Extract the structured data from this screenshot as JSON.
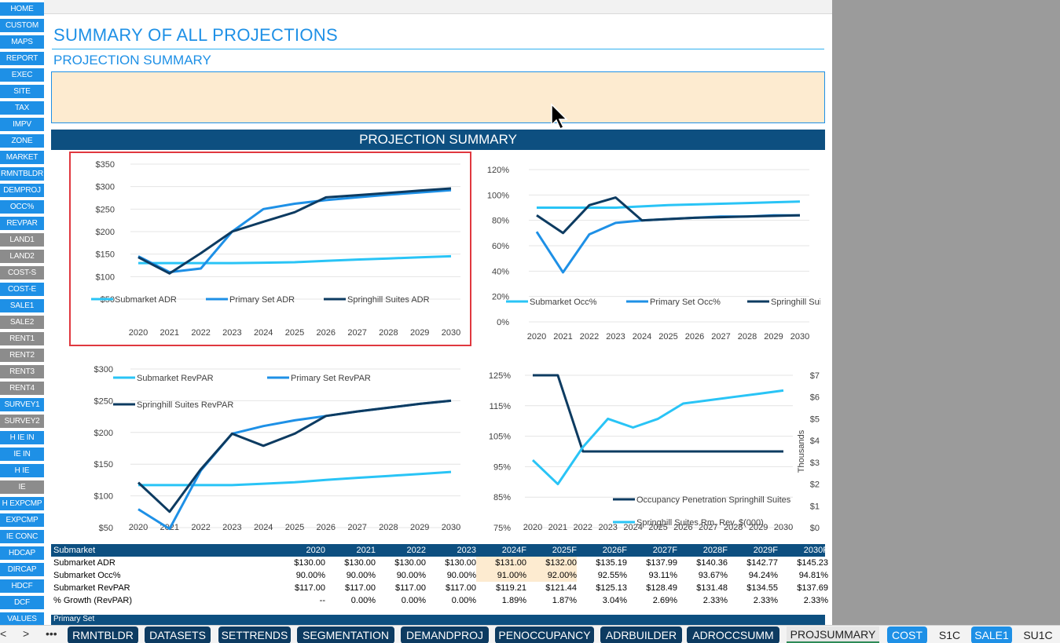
{
  "nav": [
    {
      "label": "HOME",
      "style": "blue"
    },
    {
      "label": "CUSTOM",
      "style": "blue"
    },
    {
      "label": "MAPS",
      "style": "blue"
    },
    {
      "label": "REPORT",
      "style": "blue"
    },
    {
      "label": "EXEC",
      "style": "blue"
    },
    {
      "label": "SITE",
      "style": "blue"
    },
    {
      "label": "TAX",
      "style": "blue"
    },
    {
      "label": "IMPV",
      "style": "blue"
    },
    {
      "label": "ZONE",
      "style": "blue"
    },
    {
      "label": "MARKET",
      "style": "blue"
    },
    {
      "label": "RMNTBLDR",
      "style": "blue"
    },
    {
      "label": "DEMPROJ",
      "style": "blue"
    },
    {
      "label": "OCC%",
      "style": "blue"
    },
    {
      "label": "REVPAR",
      "style": "blue"
    },
    {
      "label": "LAND1",
      "style": "grey"
    },
    {
      "label": "LAND2",
      "style": "grey"
    },
    {
      "label": "COST-S",
      "style": "grey"
    },
    {
      "label": "COST-E",
      "style": "blue"
    },
    {
      "label": "SALE1",
      "style": "blue"
    },
    {
      "label": "SALE2",
      "style": "grey"
    },
    {
      "label": "RENT1",
      "style": "grey"
    },
    {
      "label": "RENT2",
      "style": "grey"
    },
    {
      "label": "RENT3",
      "style": "grey"
    },
    {
      "label": "RENT4",
      "style": "grey"
    },
    {
      "label": "SURVEY1",
      "style": "blue"
    },
    {
      "label": "SURVEY2",
      "style": "grey"
    },
    {
      "label": "H IE IN",
      "style": "blue"
    },
    {
      "label": "IE IN",
      "style": "blue"
    },
    {
      "label": "H IE",
      "style": "blue"
    },
    {
      "label": "IE",
      "style": "grey"
    },
    {
      "label": "H EXPCMP",
      "style": "blue"
    },
    {
      "label": "EXPCMP",
      "style": "blue"
    },
    {
      "label": "IE CONC",
      "style": "blue"
    },
    {
      "label": "HDCAP",
      "style": "blue"
    },
    {
      "label": "DIRCAP",
      "style": "blue"
    },
    {
      "label": "HDCF",
      "style": "blue"
    },
    {
      "label": "DCF",
      "style": "blue"
    },
    {
      "label": "VALUES",
      "style": "blue"
    }
  ],
  "page": {
    "title": "SUMMARY OF ALL PROJECTIONS",
    "subtitle": "PROJECTION SUMMARY",
    "band_title": "PROJECTION SUMMARY"
  },
  "chart_data": [
    {
      "type": "line",
      "id": "adr",
      "x": [
        "2020",
        "2021",
        "2022",
        "2023",
        "2024",
        "2025",
        "2026",
        "2027",
        "2028",
        "2029",
        "2030"
      ],
      "yticks": [
        "$350",
        "$300",
        "$250",
        "$200",
        "$150",
        "$100",
        "$50"
      ],
      "ylim": [
        50,
        350
      ],
      "series": [
        {
          "name": "Submarket ADR",
          "color": "#29c4f6",
          "values": [
            130,
            130,
            130,
            130,
            131,
            132,
            135.19,
            137.99,
            140.36,
            142.77,
            145.23
          ]
        },
        {
          "name": "Primary Set ADR",
          "color": "#1e90e6",
          "values": [
            145,
            110,
            118,
            200,
            250,
            262,
            270,
            276,
            282,
            287,
            292
          ]
        },
        {
          "name": "Springhill Suites ADR",
          "color": "#0d3b61",
          "values": [
            143,
            107,
            152,
            200,
            222,
            243,
            276,
            281,
            286,
            291,
            296
          ]
        }
      ],
      "legend": "bottom"
    },
    {
      "type": "line",
      "id": "occ",
      "x": [
        "2020",
        "2021",
        "2022",
        "2023",
        "2024",
        "2025",
        "2026",
        "2027",
        "2028",
        "2029",
        "2030"
      ],
      "yticks": [
        "120%",
        "100%",
        "80%",
        "60%",
        "40%",
        "20%",
        "0%"
      ],
      "ylim": [
        0,
        120
      ],
      "series": [
        {
          "name": "Submarket Occ%",
          "color": "#29c4f6",
          "values": [
            90,
            90,
            90,
            90,
            91,
            92,
            92.55,
            93.11,
            93.67,
            94.24,
            94.81
          ]
        },
        {
          "name": "Primary Set Occ%",
          "color": "#1e90e6",
          "values": [
            71,
            39,
            69,
            78,
            80,
            81,
            82,
            83,
            83,
            84,
            84
          ]
        },
        {
          "name": "Springhill Suites Occ%",
          "color": "#0d3b61",
          "values": [
            84,
            70,
            92,
            98,
            80,
            81,
            82,
            82.5,
            83,
            83.5,
            84
          ]
        }
      ],
      "legend": "bottom"
    },
    {
      "type": "line",
      "id": "revpar",
      "x": [
        "2020",
        "2021",
        "2022",
        "2023",
        "2024",
        "2025",
        "2026",
        "2027",
        "2028",
        "2029",
        "2030"
      ],
      "yticks": [
        "$300",
        "$250",
        "$200",
        "$150",
        "$100",
        "$50"
      ],
      "ylim": [
        50,
        300
      ],
      "series": [
        {
          "name": "Submarket RevPAR",
          "color": "#29c4f6",
          "values": [
            117,
            117,
            117,
            117,
            119.21,
            121.44,
            125.13,
            128.49,
            131.48,
            134.55,
            137.69
          ]
        },
        {
          "name": "Primary Set RevPAR",
          "color": "#1e90e6",
          "values": [
            79,
            48,
            140,
            198,
            210,
            219,
            226,
            233,
            239,
            245,
            250
          ]
        },
        {
          "name": "Springhill Suites RevPAR",
          "color": "#0d3b61",
          "values": [
            121,
            75,
            142,
            198,
            179,
            198,
            226,
            233,
            239,
            245,
            250
          ]
        }
      ],
      "legend": "top"
    },
    {
      "type": "line",
      "id": "penetration",
      "x": [
        "2020",
        "2021",
        "2022",
        "2023",
        "2024",
        "2025",
        "2026",
        "2027",
        "2028",
        "2029",
        "2030"
      ],
      "yticks_left": [
        "125%",
        "115%",
        "105%",
        "95%",
        "85%",
        "75%"
      ],
      "ylim_left": [
        75,
        125
      ],
      "yticks_right": [
        "$7",
        "$6",
        "$5",
        "$4",
        "$3",
        "$2",
        "$1",
        "$0"
      ],
      "ylim_right": [
        0,
        7
      ],
      "ylabel_right": "Thousands",
      "series": [
        {
          "name": "Occupancy Penetration Springhill Suites",
          "axis": "left",
          "color": "#0d3b61",
          "values": [
            140,
            125,
            100,
            100,
            100,
            100,
            100,
            100,
            100,
            100,
            100
          ]
        },
        {
          "name": "Springhill Suites Rm. Rev. $(000)",
          "axis": "right",
          "color": "#29c4f6",
          "values": [
            3.1,
            2.0,
            3.7,
            5.0,
            4.6,
            5.0,
            5.7,
            5.85,
            6.0,
            6.15,
            6.3
          ]
        }
      ],
      "legend": "bottom"
    }
  ],
  "table": {
    "header": [
      "Submarket",
      "2020",
      "2021",
      "2022",
      "2023",
      "2024F",
      "2025F",
      "2026F",
      "2027F",
      "2028F",
      "2029F",
      "2030F"
    ],
    "rows": [
      {
        "label": "Submarket ADR",
        "values": [
          "$130.00",
          "$130.00",
          "$130.00",
          "$130.00",
          "$131.00",
          "$132.00",
          "$135.19",
          "$137.99",
          "$140.36",
          "$142.77",
          "$145.23"
        ],
        "highlight": [
          4,
          5
        ]
      },
      {
        "label": "Submarket Occ%",
        "values": [
          "90.00%",
          "90.00%",
          "90.00%",
          "90.00%",
          "91.00%",
          "92.00%",
          "92.55%",
          "93.11%",
          "93.67%",
          "94.24%",
          "94.81%"
        ],
        "highlight": [
          4,
          5
        ]
      },
      {
        "label": "Submarket RevPAR",
        "values": [
          "$117.00",
          "$117.00",
          "$117.00",
          "$117.00",
          "$119.21",
          "$121.44",
          "$125.13",
          "$128.49",
          "$131.48",
          "$134.55",
          "$137.69"
        ],
        "highlight": []
      },
      {
        "label": "% Growth (RevPAR)",
        "values": [
          "--",
          "0.00%",
          "0.00%",
          "0.00%",
          "1.89%",
          "1.87%",
          "3.04%",
          "2.69%",
          "2.33%",
          "2.33%",
          "2.33%"
        ],
        "highlight": []
      }
    ],
    "next_band": "Primary Set"
  },
  "tabs": {
    "nav_prev": "<",
    "nav_next": ">",
    "more": "•••",
    "items": [
      {
        "label": "RMNTBLDR",
        "style": "dark"
      },
      {
        "label": "DATASETS",
        "style": "dark"
      },
      {
        "label": "SETTRENDS",
        "style": "dark"
      },
      {
        "label": "SEGMENTATION",
        "style": "dark"
      },
      {
        "label": "DEMANDPROJ",
        "style": "dark"
      },
      {
        "label": "PENOCCUPANCY",
        "style": "dark"
      },
      {
        "label": "ADRBUILDER",
        "style": "dark"
      },
      {
        "label": "ADROCCSUMM",
        "style": "dark"
      },
      {
        "label": "PROJSUMMARY",
        "style": "active"
      },
      {
        "label": "COST",
        "style": "light"
      },
      {
        "label": "S1C",
        "style": "plain"
      },
      {
        "label": "SALE1",
        "style": "light"
      },
      {
        "label": "SU1C",
        "style": "plain"
      }
    ]
  }
}
